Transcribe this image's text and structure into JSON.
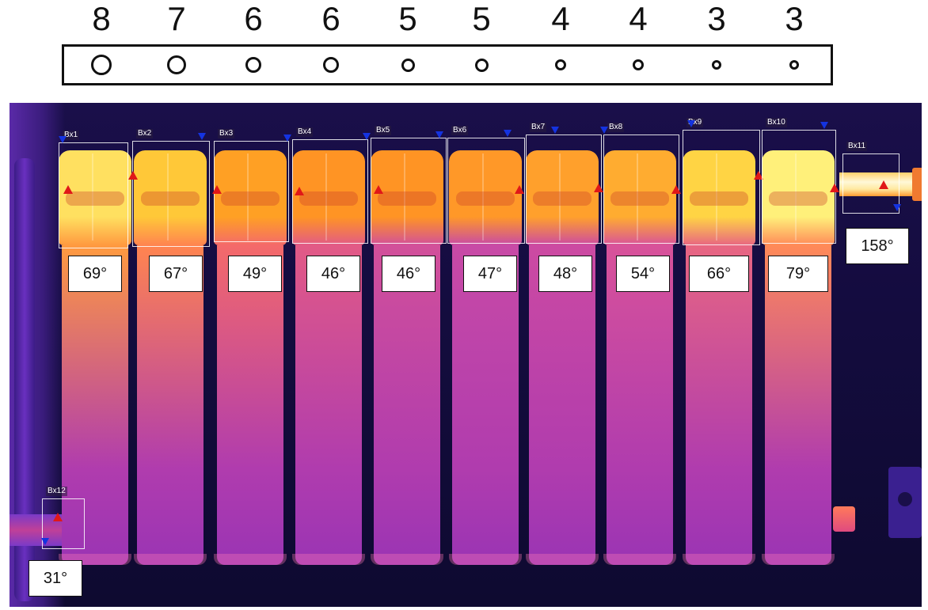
{
  "settings": [
    "8",
    "7",
    "6",
    "6",
    "5",
    "5",
    "4",
    "4",
    "3",
    "3"
  ],
  "sections": [
    {
      "box": "Bx1",
      "temp": "69°",
      "header": "#ffe060",
      "body": "#ff9a40"
    },
    {
      "box": "Bx2",
      "temp": "67°",
      "header": "#ffc838",
      "body": "#ff8450"
    },
    {
      "box": "Bx3",
      "temp": "49°",
      "header": "#ffa024",
      "body": "#f46a6a"
    },
    {
      "box": "Bx4",
      "temp": "46°",
      "header": "#ff9424",
      "body": "#e25a86"
    },
    {
      "box": "Bx5",
      "temp": "46°",
      "header": "#ff9424",
      "body": "#d2509a"
    },
    {
      "box": "Bx6",
      "temp": "47°",
      "header": "#ff9828",
      "body": "#c84aa6"
    },
    {
      "box": "Bx7",
      "temp": "48°",
      "header": "#ffa02c",
      "body": "#cc4aa2"
    },
    {
      "box": "Bx8",
      "temp": "54°",
      "header": "#ffac30",
      "body": "#d8529a"
    },
    {
      "box": "Bx9",
      "temp": "66°",
      "header": "#ffd444",
      "body": "#e86682"
    },
    {
      "box": "Bx10",
      "temp": "79°",
      "header": "#fff07a",
      "body": "#ff8a58"
    }
  ],
  "inlet": {
    "box": "Bx11",
    "temp": "158°"
  },
  "outlet": {
    "box": "Bx12",
    "temp": "31°"
  },
  "colors": {
    "background": "#140c3f",
    "marker_max": "#e01818",
    "marker_min": "#1433e0"
  }
}
